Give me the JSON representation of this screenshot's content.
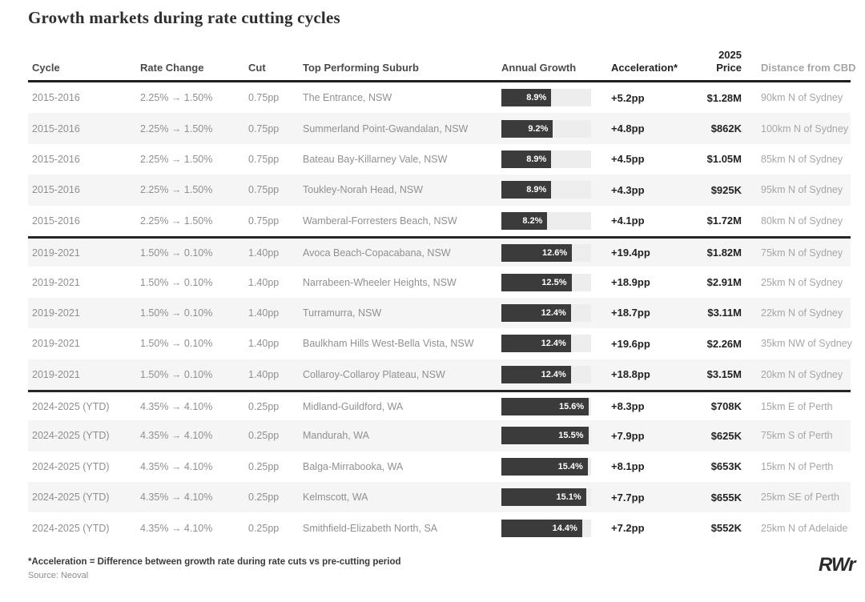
{
  "title": "Growth markets during rate cutting cycles",
  "columns": {
    "cycle": "Cycle",
    "rate_change": "Rate Change",
    "cut": "Cut",
    "suburb": "Top Performing Suburb",
    "growth": "Annual Growth",
    "acceleration": "Acceleration*",
    "price": "2025 Price",
    "distance": "Distance from CBD"
  },
  "bar": {
    "max_scale_pct": 16,
    "fill_color": "#3b3b3b",
    "track_color": "#ededed"
  },
  "chart_data": {
    "type": "table",
    "title": "Growth markets during rate cutting cycles",
    "columns": [
      "Cycle",
      "Rate Change",
      "Cut",
      "Top Performing Suburb",
      "Annual Growth",
      "Acceleration*",
      "2025 Price",
      "Distance from CBD"
    ],
    "annual_growth_bar_range_pct": [
      0,
      16
    ],
    "groups": [
      "2015-2016",
      "2019-2021",
      "2024-2025 (YTD)"
    ],
    "rows": [
      {
        "cycle": "2015-2016",
        "rate_change": "2.25% → 1.50%",
        "cut": "0.75pp",
        "suburb": "The Entrance, NSW",
        "growth_pct": 8.9,
        "growth_label": "8.9%",
        "acceleration": "+5.2pp",
        "price": "$1.28M",
        "distance": "90km N of Sydney",
        "group": 0
      },
      {
        "cycle": "2015-2016",
        "rate_change": "2.25% → 1.50%",
        "cut": "0.75pp",
        "suburb": "Summerland Point-Gwandalan, NSW",
        "growth_pct": 9.2,
        "growth_label": "9.2%",
        "acceleration": "+4.8pp",
        "price": "$862K",
        "distance": "100km N of Sydney",
        "group": 0
      },
      {
        "cycle": "2015-2016",
        "rate_change": "2.25% → 1.50%",
        "cut": "0.75pp",
        "suburb": "Bateau Bay-Killarney Vale, NSW",
        "growth_pct": 8.9,
        "growth_label": "8.9%",
        "acceleration": "+4.5pp",
        "price": "$1.05M",
        "distance": "85km N of Sydney",
        "group": 0
      },
      {
        "cycle": "2015-2016",
        "rate_change": "2.25% → 1.50%",
        "cut": "0.75pp",
        "suburb": "Toukley-Norah Head, NSW",
        "growth_pct": 8.9,
        "growth_label": "8.9%",
        "acceleration": "+4.3pp",
        "price": "$925K",
        "distance": "95km N of Sydney",
        "group": 0
      },
      {
        "cycle": "2015-2016",
        "rate_change": "2.25% → 1.50%",
        "cut": "0.75pp",
        "suburb": "Wamberal-Forresters Beach, NSW",
        "growth_pct": 8.2,
        "growth_label": "8.2%",
        "acceleration": "+4.1pp",
        "price": "$1.72M",
        "distance": "80km N of Sydney",
        "group": 0
      },
      {
        "cycle": "2019-2021",
        "rate_change": "1.50% → 0.10%",
        "cut": "1.40pp",
        "suburb": "Avoca Beach-Copacabana, NSW",
        "growth_pct": 12.6,
        "growth_label": "12.6%",
        "acceleration": "+19.4pp",
        "price": "$1.82M",
        "distance": "75km N of Sydney",
        "group": 1
      },
      {
        "cycle": "2019-2021",
        "rate_change": "1.50% → 0.10%",
        "cut": "1.40pp",
        "suburb": "Narrabeen-Wheeler Heights, NSW",
        "growth_pct": 12.5,
        "growth_label": "12.5%",
        "acceleration": "+18.9pp",
        "price": "$2.91M",
        "distance": "25km N of Sydney",
        "group": 1
      },
      {
        "cycle": "2019-2021",
        "rate_change": "1.50% → 0.10%",
        "cut": "1.40pp",
        "suburb": "Turramurra, NSW",
        "growth_pct": 12.4,
        "growth_label": "12.4%",
        "acceleration": "+18.7pp",
        "price": "$3.11M",
        "distance": "22km N of Sydney",
        "group": 1
      },
      {
        "cycle": "2019-2021",
        "rate_change": "1.50% → 0.10%",
        "cut": "1.40pp",
        "suburb": "Baulkham Hills West-Bella Vista, NSW",
        "growth_pct": 12.4,
        "growth_label": "12.4%",
        "acceleration": "+19.6pp",
        "price": "$2.26M",
        "distance": "35km NW of Sydney",
        "group": 1
      },
      {
        "cycle": "2019-2021",
        "rate_change": "1.50% → 0.10%",
        "cut": "1.40pp",
        "suburb": "Collaroy-Collaroy Plateau, NSW",
        "growth_pct": 12.4,
        "growth_label": "12.4%",
        "acceleration": "+18.8pp",
        "price": "$3.15M",
        "distance": "20km N of Sydney",
        "group": 1
      },
      {
        "cycle": "2024-2025 (YTD)",
        "rate_change": "4.35% → 4.10%",
        "cut": "0.25pp",
        "suburb": "Midland-Guildford, WA",
        "growth_pct": 15.6,
        "growth_label": "15.6%",
        "acceleration": "+8.3pp",
        "price": "$708K",
        "distance": "15km E of Perth",
        "group": 2
      },
      {
        "cycle": "2024-2025 (YTD)",
        "rate_change": "4.35% → 4.10%",
        "cut": "0.25pp",
        "suburb": "Mandurah, WA",
        "growth_pct": 15.5,
        "growth_label": "15.5%",
        "acceleration": "+7.9pp",
        "price": "$625K",
        "distance": "75km S of Perth",
        "group": 2
      },
      {
        "cycle": "2024-2025 (YTD)",
        "rate_change": "4.35% → 4.10%",
        "cut": "0.25pp",
        "suburb": "Balga-Mirrabooka, WA",
        "growth_pct": 15.4,
        "growth_label": "15.4%",
        "acceleration": "+8.1pp",
        "price": "$653K",
        "distance": "15km N of Perth",
        "group": 2
      },
      {
        "cycle": "2024-2025 (YTD)",
        "rate_change": "4.35% → 4.10%",
        "cut": "0.25pp",
        "suburb": "Kelmscott, WA",
        "growth_pct": 15.1,
        "growth_label": "15.1%",
        "acceleration": "+7.7pp",
        "price": "$655K",
        "distance": "25km SE of Perth",
        "group": 2
      },
      {
        "cycle": "2024-2025 (YTD)",
        "rate_change": "4.35% → 4.10%",
        "cut": "0.25pp",
        "suburb": "Smithfield-Elizabeth North, SA",
        "growth_pct": 14.4,
        "growth_label": "14.4%",
        "acceleration": "+7.2pp",
        "price": "$552K",
        "distance": "25km N of Adelaide",
        "group": 2
      }
    ]
  },
  "footer": {
    "footnote": "*Acceleration = Difference between growth rate during rate cuts vs pre-cutting period",
    "source": "Source: Neoval",
    "logo_text": "RWr"
  },
  "colors": {
    "bar_fill": "#3b3b3b",
    "bar_track": "#ededed",
    "row_stripe": "#f5f5f5",
    "divider": "#262626",
    "text_gray": "#909090",
    "text_dark": "#222222"
  }
}
